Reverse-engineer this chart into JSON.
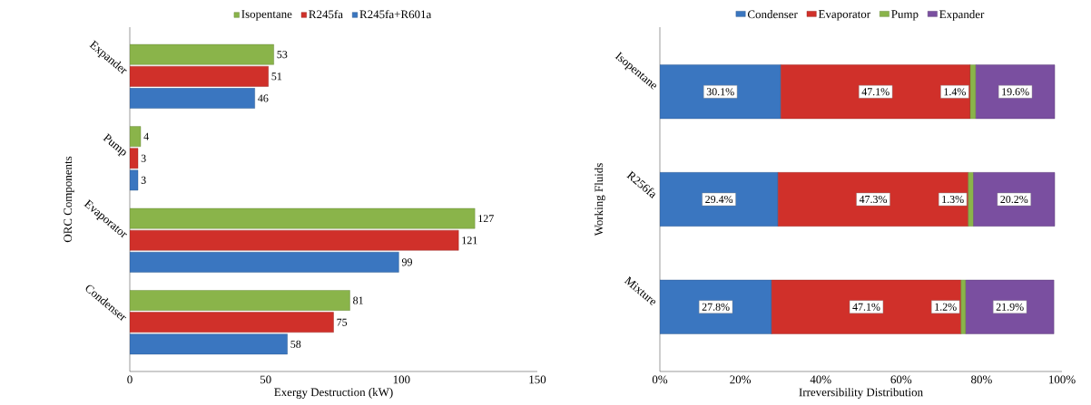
{
  "chart_data": [
    {
      "type": "bar",
      "orientation": "horizontal",
      "categories": [
        "Expander",
        "Pump",
        "Evaporator",
        "Condenser"
      ],
      "xlabel": "Exergy Destruction (kW)",
      "ylabel": "ORC Components",
      "xlim": [
        0,
        150
      ],
      "xticks": [
        0,
        50,
        100,
        150
      ],
      "legend": "top",
      "data_labels": true,
      "series": [
        {
          "name": "Isopentane",
          "color": "#8ab44a",
          "values": [
            53,
            4,
            127,
            81
          ]
        },
        {
          "name": "R245fa",
          "color": "#d0302a",
          "values": [
            51,
            3,
            121,
            75
          ]
        },
        {
          "name": "R245fa+R601a",
          "color": "#3a76c0",
          "values": [
            46,
            3,
            99,
            58
          ]
        }
      ]
    },
    {
      "type": "bar",
      "orientation": "horizontal",
      "stacked": true,
      "categories": [
        "Isopentane",
        "R256fa",
        "Mixture"
      ],
      "xlabel": "Irreversibility Distribution",
      "ylabel": "Working Fluids",
      "xlim": [
        0,
        100
      ],
      "xticks": [
        {
          "value": 0,
          "label": "0%"
        },
        {
          "value": 20,
          "label": "20%"
        },
        {
          "value": 40,
          "label": "40%"
        },
        {
          "value": 60,
          "label": "60%"
        },
        {
          "value": 80,
          "label": "80%"
        },
        {
          "value": 100,
          "label": "100%"
        }
      ],
      "legend": "top",
      "series": [
        {
          "name": "Condenser",
          "color": "#3a76c0",
          "values": [
            30.1,
            29.4,
            27.8
          ],
          "value_labels": [
            "30.1%",
            "29.4%",
            "27.8%"
          ]
        },
        {
          "name": "Evaporator",
          "color": "#d0302a",
          "values": [
            47.1,
            47.3,
            47.1
          ],
          "value_labels": [
            "47.1%",
            "47.3%",
            "47.1%"
          ]
        },
        {
          "name": "Pump",
          "color": "#8ab44a",
          "values": [
            1.4,
            1.3,
            1.2
          ],
          "value_labels": [
            "1.4%",
            "1.3%",
            "1.2%"
          ]
        },
        {
          "name": "Expander",
          "color": "#7a4fa0",
          "values": [
            19.6,
            20.2,
            21.9
          ],
          "value_labels": [
            "19.6%",
            "20.2%",
            "21.9%"
          ]
        }
      ]
    }
  ]
}
